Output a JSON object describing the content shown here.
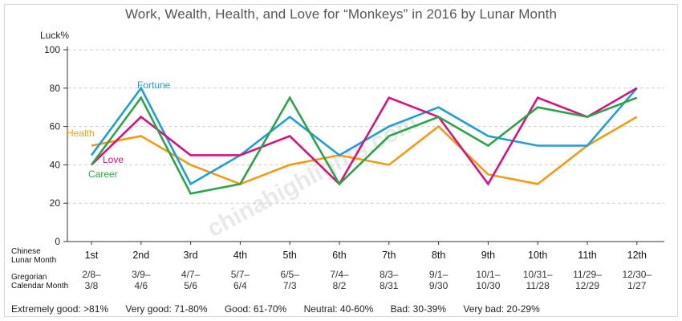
{
  "chart_data": {
    "type": "line",
    "title": "Work, Wealth, Health, and Love for “Monkeys” in 2016 by Lunar Month",
    "ylabel": "Luck%",
    "ylim": [
      0,
      100
    ],
    "yticks": [
      0,
      20,
      40,
      60,
      80,
      100
    ],
    "grid": "horizontal dashed",
    "row_labels": {
      "lunar": [
        "Chinese",
        "Lunar Month"
      ],
      "gregorian": [
        "Gregorian",
        "Calendar Month"
      ]
    },
    "categories": [
      "1st",
      "2nd",
      "3rd",
      "4th",
      "5th",
      "6th",
      "7th",
      "8th",
      "9th",
      "10th",
      "11th",
      "12th"
    ],
    "gregorian": [
      [
        "2/8–",
        "3/8"
      ],
      [
        "3/9–",
        "4/6"
      ],
      [
        "4/7–",
        "5/6"
      ],
      [
        "5/7–",
        "6/4"
      ],
      [
        "6/5–",
        "7/3"
      ],
      [
        "7/4–",
        "8/2"
      ],
      [
        "8/3–",
        "8/31"
      ],
      [
        "9/1–",
        "9/30"
      ],
      [
        "10/1–",
        "10/30"
      ],
      [
        "10/31–",
        "11/28"
      ],
      [
        "11/29–",
        "12/29"
      ],
      [
        "12/30–",
        "1/27"
      ]
    ],
    "series": [
      {
        "name": "Health",
        "color": "#f39c12",
        "values": [
          50,
          55,
          40,
          30,
          40,
          45,
          40,
          60,
          35,
          30,
          50,
          65
        ]
      },
      {
        "name": "Fortune",
        "color": "#1e9fd8",
        "values": [
          45,
          80,
          30,
          45,
          65,
          45,
          60,
          70,
          55,
          50,
          50,
          80
        ]
      },
      {
        "name": "Love",
        "color": "#d6147f",
        "values": [
          40,
          65,
          45,
          45,
          55,
          30,
          75,
          65,
          30,
          75,
          65,
          80
        ]
      },
      {
        "name": "Career",
        "color": "#2ea44a",
        "values": [
          40,
          75,
          25,
          30,
          75,
          30,
          55,
          65,
          50,
          70,
          65,
          75
        ]
      }
    ],
    "legend_text": [
      "Extremely good: >81%",
      "Very good: 71-80%",
      "Good: 61-70%",
      "Neutral: 40-60%",
      "Bad: 30-39%",
      "Very bad: 20-29%"
    ]
  },
  "watermark": "chinahighlights.com"
}
